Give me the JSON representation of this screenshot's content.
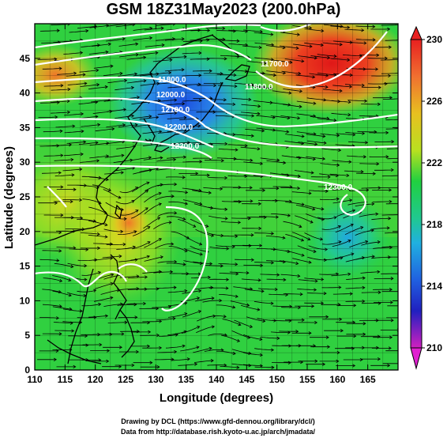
{
  "title": "GSM 18Z31May2023 (200.0hPa)",
  "x_axis": {
    "label": "Longitude (degrees)",
    "ticks": [
      "110",
      "115",
      "120",
      "125",
      "130",
      "135",
      "140",
      "145",
      "150",
      "155",
      "160",
      "165"
    ]
  },
  "y_axis": {
    "label": "Latitude  (degrees)",
    "ticks": [
      "0",
      "5",
      "10",
      "15",
      "20",
      "25",
      "30",
      "35",
      "40",
      "45"
    ]
  },
  "colorbar": {
    "ticks": [
      "230",
      "226",
      "222",
      "218",
      "214",
      "210"
    ]
  },
  "contour_labels": [
    "11700.0",
    "11800.0",
    "11800.0",
    "12000.0",
    "12100.0",
    "12200.0",
    "12300.0",
    "12300.0"
  ],
  "footer": {
    "line1": "Drawing by DCL (https://www.gfd-dennou.org/library/dcl/)",
    "line2": "Data from http://database.rish.kyoto-u.ac.jp/arch/jmadata/"
  }
}
